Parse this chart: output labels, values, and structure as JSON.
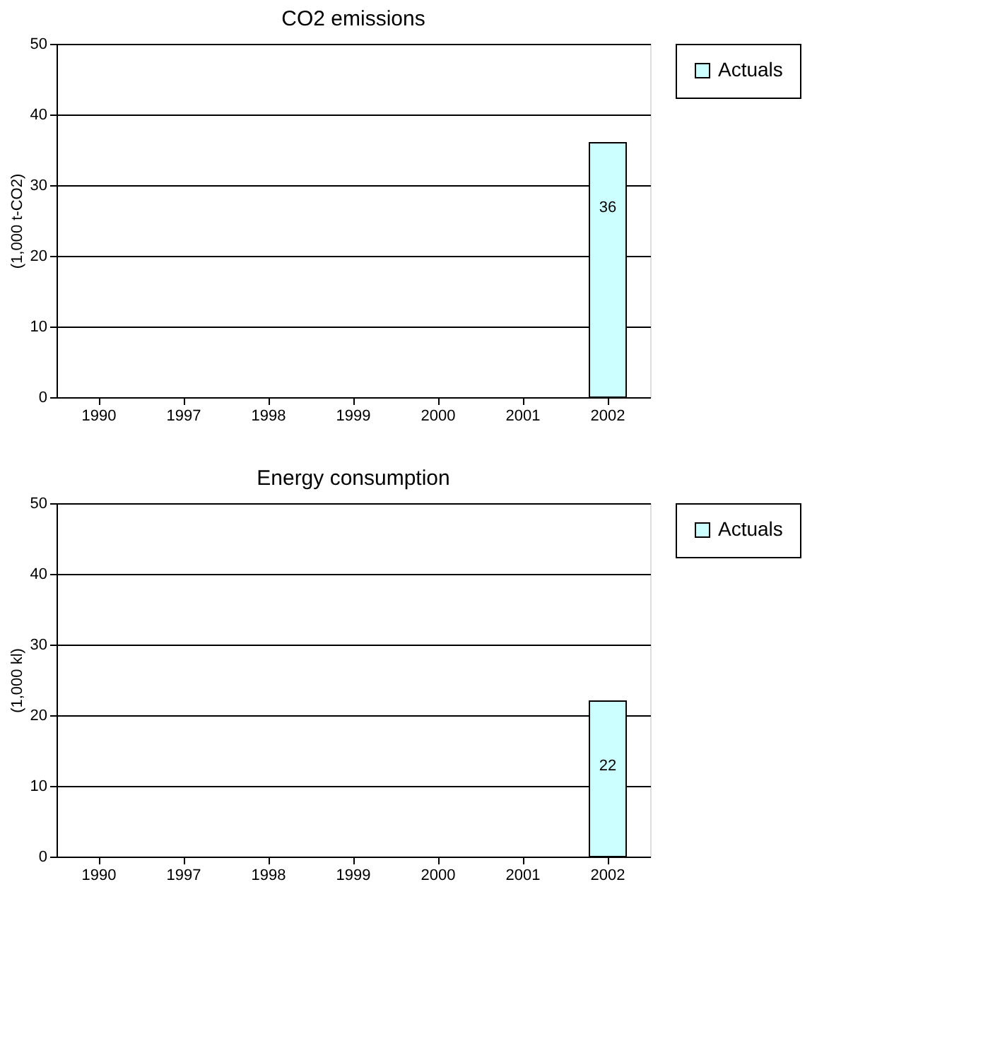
{
  "chart_data": [
    {
      "type": "bar",
      "title": "CO2 emissions",
      "ylabel": "(1,000 t-CO2)",
      "categories": [
        "1990",
        "1997",
        "1998",
        "1999",
        "2000",
        "2001",
        "2002"
      ],
      "series": [
        {
          "name": "Actuals",
          "color": "#ccffff",
          "values": [
            null,
            null,
            null,
            null,
            null,
            null,
            36
          ]
        }
      ],
      "ylim": [
        0,
        50
      ],
      "yticks": [
        0,
        10,
        20,
        30,
        40,
        50
      ],
      "grid": "y",
      "legend": "top right",
      "data_labels": true
    },
    {
      "type": "bar",
      "title": "Energy consumption",
      "ylabel": "(1,000 kl)",
      "categories": [
        "1990",
        "1997",
        "1998",
        "1999",
        "2000",
        "2001",
        "2002"
      ],
      "series": [
        {
          "name": "Actuals",
          "color": "#ccffff",
          "values": [
            null,
            null,
            null,
            null,
            null,
            null,
            22
          ]
        }
      ],
      "ylim": [
        0,
        50
      ],
      "yticks": [
        0,
        10,
        20,
        30,
        40,
        50
      ],
      "grid": "y",
      "legend": "top right",
      "data_labels": true
    }
  ]
}
